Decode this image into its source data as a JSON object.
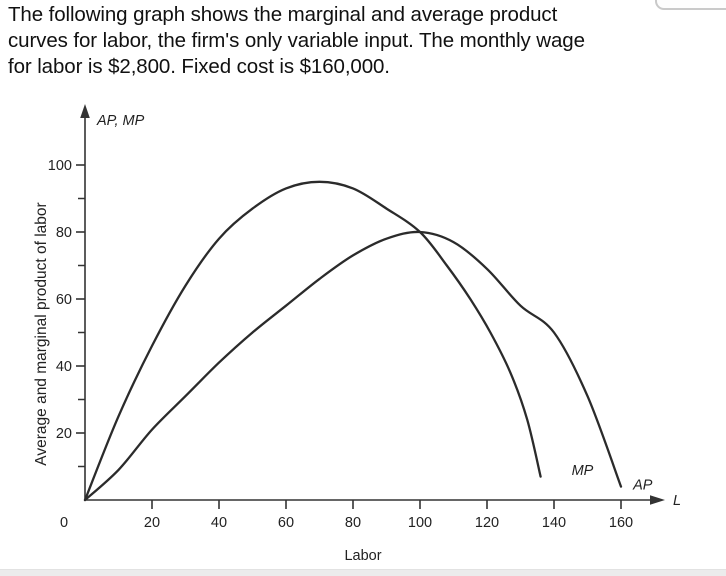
{
  "heading": {
    "lines": [
      "The following graph shows the marginal and average product",
      "curves for labor, the firm's only variable input. The monthly wage",
      "for labor is $2,800. Fixed cost is $160,000."
    ]
  },
  "chart_data": {
    "type": "line",
    "title": "",
    "xlabel": "Labor",
    "ylabel": "Average and marginal product of labor",
    "x_arrow_label": "L",
    "y_arrow_label": "AP, MP",
    "origin_label": "0",
    "xlim": [
      0,
      172
    ],
    "ylim": [
      0,
      118
    ],
    "grid": false,
    "legend_position": "curve-end-annotations",
    "xticks": [
      20,
      40,
      60,
      80,
      100,
      120,
      140,
      160
    ],
    "yticks": [
      20,
      40,
      60,
      80,
      100
    ],
    "yticks_minor": [
      10,
      30,
      50,
      70,
      90
    ],
    "line_color": "#2b2b2b",
    "axis_color": "#333333",
    "series": [
      {
        "name": "MP",
        "annotation": "MP",
        "annotation_pos": [
          148.5,
          7.5
        ],
        "points": [
          [
            0,
            0
          ],
          [
            10,
            25
          ],
          [
            20,
            46
          ],
          [
            30,
            64
          ],
          [
            40,
            78
          ],
          [
            50,
            87
          ],
          [
            60,
            93
          ],
          [
            70,
            95
          ],
          [
            80,
            93
          ],
          [
            90,
            87
          ],
          [
            100,
            80
          ],
          [
            108,
            70
          ],
          [
            115,
            60
          ],
          [
            121,
            50
          ],
          [
            127,
            38
          ],
          [
            132,
            24
          ],
          [
            136,
            7
          ]
        ]
      },
      {
        "name": "AP",
        "annotation": "AP",
        "annotation_pos": [
          166.5,
          3.2
        ],
        "points": [
          [
            0,
            0
          ],
          [
            10,
            9
          ],
          [
            20,
            21
          ],
          [
            30,
            31
          ],
          [
            40,
            41
          ],
          [
            50,
            50
          ],
          [
            60,
            58
          ],
          [
            70,
            66
          ],
          [
            80,
            73
          ],
          [
            90,
            78
          ],
          [
            100,
            80
          ],
          [
            110,
            77
          ],
          [
            120,
            69
          ],
          [
            130,
            58
          ],
          [
            140,
            50
          ],
          [
            150,
            31
          ],
          [
            160,
            4
          ]
        ]
      }
    ],
    "notes": "MP peaks at about (70, 95); AP peaks at 80 where MP crosses it at L=100; MP hits ~0 near L=136, AP near L=160"
  }
}
